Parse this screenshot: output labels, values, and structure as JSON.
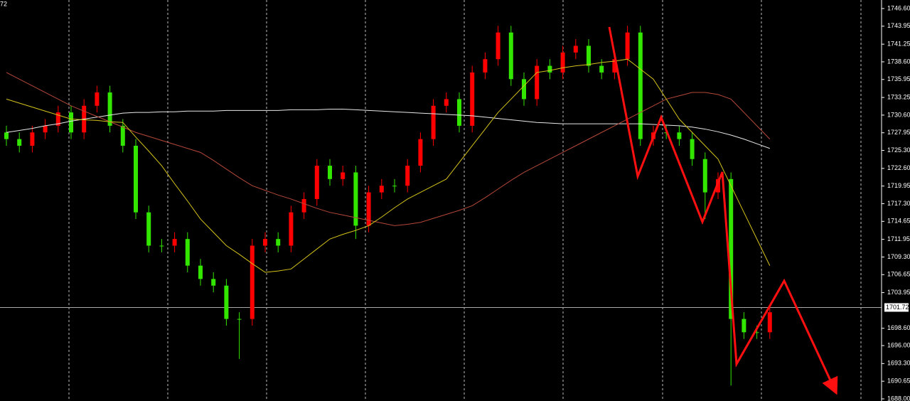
{
  "chart_data": {
    "type": "candlestick",
    "corner_label": "72",
    "up_color": "#ff0000",
    "down_color": "#33e600",
    "open": [
      1728,
      1727,
      1726,
      1728,
      1729,
      1731,
      1728,
      1732,
      1734,
      1729,
      1726,
      1716,
      1711,
      1711,
      1712,
      1708,
      1706,
      1705,
      1700,
      1700,
      1711,
      1712,
      1711,
      1716,
      1718,
      1723,
      1721,
      1722,
      1714,
      1719,
      1720,
      1720,
      1723,
      1727,
      1732,
      1733,
      1729,
      1737,
      1739,
      1743,
      1736,
      1733,
      1738,
      1737,
      1740,
      1741,
      1738,
      1737,
      1739,
      1743,
      1727,
      1728,
      1728,
      1727,
      1724,
      1719,
      1721,
      1700,
      1698,
      1698
    ],
    "high": [
      1729,
      1728,
      1729,
      1730,
      1732,
      1732,
      1733,
      1735,
      1735,
      1730,
      1727,
      1717,
      1712,
      1713,
      1713,
      1709,
      1707,
      1706,
      1701,
      1712,
      1713,
      1713,
      1717,
      1719,
      1724,
      1724,
      1723,
      1723,
      1720,
      1721,
      1721,
      1724,
      1728,
      1733,
      1734,
      1734,
      1738,
      1740,
      1744,
      1744,
      1737,
      1739,
      1739,
      1741,
      1742,
      1742,
      1739,
      1740,
      1744,
      1744,
      1729,
      1729,
      1729,
      1728,
      1725,
      1722,
      1722,
      1701,
      1699,
      1702
    ],
    "low": [
      1726,
      1725,
      1725,
      1727,
      1728,
      1727,
      1727,
      1731,
      1728,
      1725,
      1715,
      1710,
      1710,
      1710,
      1707,
      1705,
      1704,
      1699,
      1694,
      1699,
      1710,
      1710,
      1710,
      1715,
      1717,
      1720,
      1720,
      1712,
      1713,
      1718,
      1719,
      1719,
      1722,
      1726,
      1731,
      1728,
      1728,
      1736,
      1738,
      1735,
      1732,
      1732,
      1736,
      1736,
      1739,
      1737,
      1736,
      1736,
      1738,
      1726,
      1726,
      1727,
      1726,
      1723,
      1715,
      1718,
      1690,
      1697,
      1697,
      1697
    ],
    "close": [
      1727,
      1726,
      1728,
      1729,
      1731,
      1728,
      1732,
      1734,
      1729,
      1726,
      1716,
      1711,
      1711,
      1712,
      1708,
      1706,
      1705,
      1700,
      1700,
      1711,
      1712,
      1711,
      1716,
      1718,
      1723,
      1721,
      1722,
      1714,
      1719,
      1720,
      1720,
      1723,
      1727,
      1732,
      1733,
      1729,
      1737,
      1739,
      1743,
      1736,
      1733,
      1738,
      1737,
      1740,
      1741,
      1738,
      1737,
      1739,
      1743,
      1727,
      1728,
      1728,
      1727,
      1724,
      1719,
      1721,
      1700,
      1698,
      1698,
      1701
    ],
    "lines": [
      {
        "color": "#e8e8e8",
        "values": [
          1728,
          1728.3,
          1728.6,
          1729,
          1729.3,
          1729.7,
          1730,
          1730.3,
          1730.6,
          1730.9,
          1731,
          1731,
          1731.1,
          1731.1,
          1731.2,
          1731.2,
          1731.2,
          1731.3,
          1731.3,
          1731.3,
          1731.3,
          1731.3,
          1731.4,
          1731.4,
          1731.4,
          1731.5,
          1731.5,
          1731.4,
          1731.3,
          1731.2,
          1731.1,
          1731,
          1730.9,
          1730.8,
          1730.7,
          1730.6,
          1730.5,
          1730.3,
          1730.1,
          1729.9,
          1729.7,
          1729.5,
          1729.4,
          1729.3,
          1729.3,
          1729.3,
          1729.3,
          1729.3,
          1729.3,
          1729.3,
          1729.2,
          1729.1,
          1729,
          1728.8,
          1728.5,
          1728.1,
          1727.6,
          1727,
          1726.3,
          1725.6
        ]
      },
      {
        "color": "#b5483a",
        "values": [
          1737,
          1736,
          1735,
          1734,
          1733,
          1732,
          1731.2,
          1730.4,
          1729.6,
          1728.8,
          1728,
          1727.4,
          1726.8,
          1726.2,
          1725.6,
          1725,
          1723.8,
          1722.5,
          1721.2,
          1720,
          1719.3,
          1718.6,
          1718,
          1717.3,
          1716.6,
          1716,
          1715.6,
          1715.2,
          1714.8,
          1714.4,
          1714,
          1714.2,
          1714.5,
          1715.1,
          1715.7,
          1716.3,
          1717,
          1718.2,
          1719.5,
          1720.8,
          1722,
          1723,
          1724,
          1725,
          1726,
          1727,
          1728,
          1729,
          1730,
          1731,
          1732,
          1733,
          1733.5,
          1734,
          1734,
          1733.7,
          1733,
          1731,
          1729,
          1727
        ]
      },
      {
        "color": "#d4c21a",
        "values": [
          1733,
          1732.4,
          1731.8,
          1731.2,
          1730.6,
          1730,
          1729.9,
          1729.8,
          1729.6,
          1729.5,
          1727.3,
          1725.2,
          1723,
          1720.3,
          1717.7,
          1715,
          1713,
          1711,
          1709.7,
          1708.3,
          1707,
          1707.2,
          1707.5,
          1709,
          1710.5,
          1712,
          1712.7,
          1713.3,
          1714,
          1715.3,
          1716.7,
          1718,
          1719,
          1720,
          1721,
          1723.5,
          1726,
          1728.5,
          1731,
          1733,
          1735,
          1737,
          1737.3,
          1737.7,
          1738,
          1738.2,
          1738.5,
          1738.7,
          1739,
          1737.5,
          1736,
          1733,
          1730,
          1728,
          1726,
          1724,
          1720,
          1716,
          1712,
          1708
        ]
      }
    ],
    "ylim": [
      1688,
      1746.6
    ],
    "yticks": [
      {
        "value": 1746.6,
        "label": "1746.60"
      },
      {
        "value": 1743.95,
        "label": "1743.95"
      },
      {
        "value": 1741.25,
        "label": "1741.25"
      },
      {
        "value": 1738.6,
        "label": "1738.60"
      },
      {
        "value": 1735.95,
        "label": "1735.95"
      },
      {
        "value": 1733.25,
        "label": "1733.25"
      },
      {
        "value": 1730.6,
        "label": "1730.60"
      },
      {
        "value": 1727.95,
        "label": "1727.95"
      },
      {
        "value": 1725.3,
        "label": "1725.30"
      },
      {
        "value": 1722.6,
        "label": "1722.60"
      },
      {
        "value": 1719.95,
        "label": "1719.95"
      },
      {
        "value": 1717.3,
        "label": "1717.30"
      },
      {
        "value": 1714.65,
        "label": "1714.65"
      },
      {
        "value": 1711.95,
        "label": "1711.95"
      },
      {
        "value": 1709.3,
        "label": "1709.30"
      },
      {
        "value": 1706.65,
        "label": "1706.65"
      },
      {
        "value": 1703.95,
        "label": "1703.95"
      },
      {
        "value": 1698.6,
        "label": "1698.60"
      },
      {
        "value": 1696,
        "label": "1696.00"
      },
      {
        "value": 1693.3,
        "label": "1693.30"
      },
      {
        "value": 1690.65,
        "label": "1690.65"
      },
      {
        "value": 1688,
        "label": "1688.00"
      }
    ],
    "current_price": {
      "value": 1701.72,
      "label": "1701.72"
    }
  }
}
